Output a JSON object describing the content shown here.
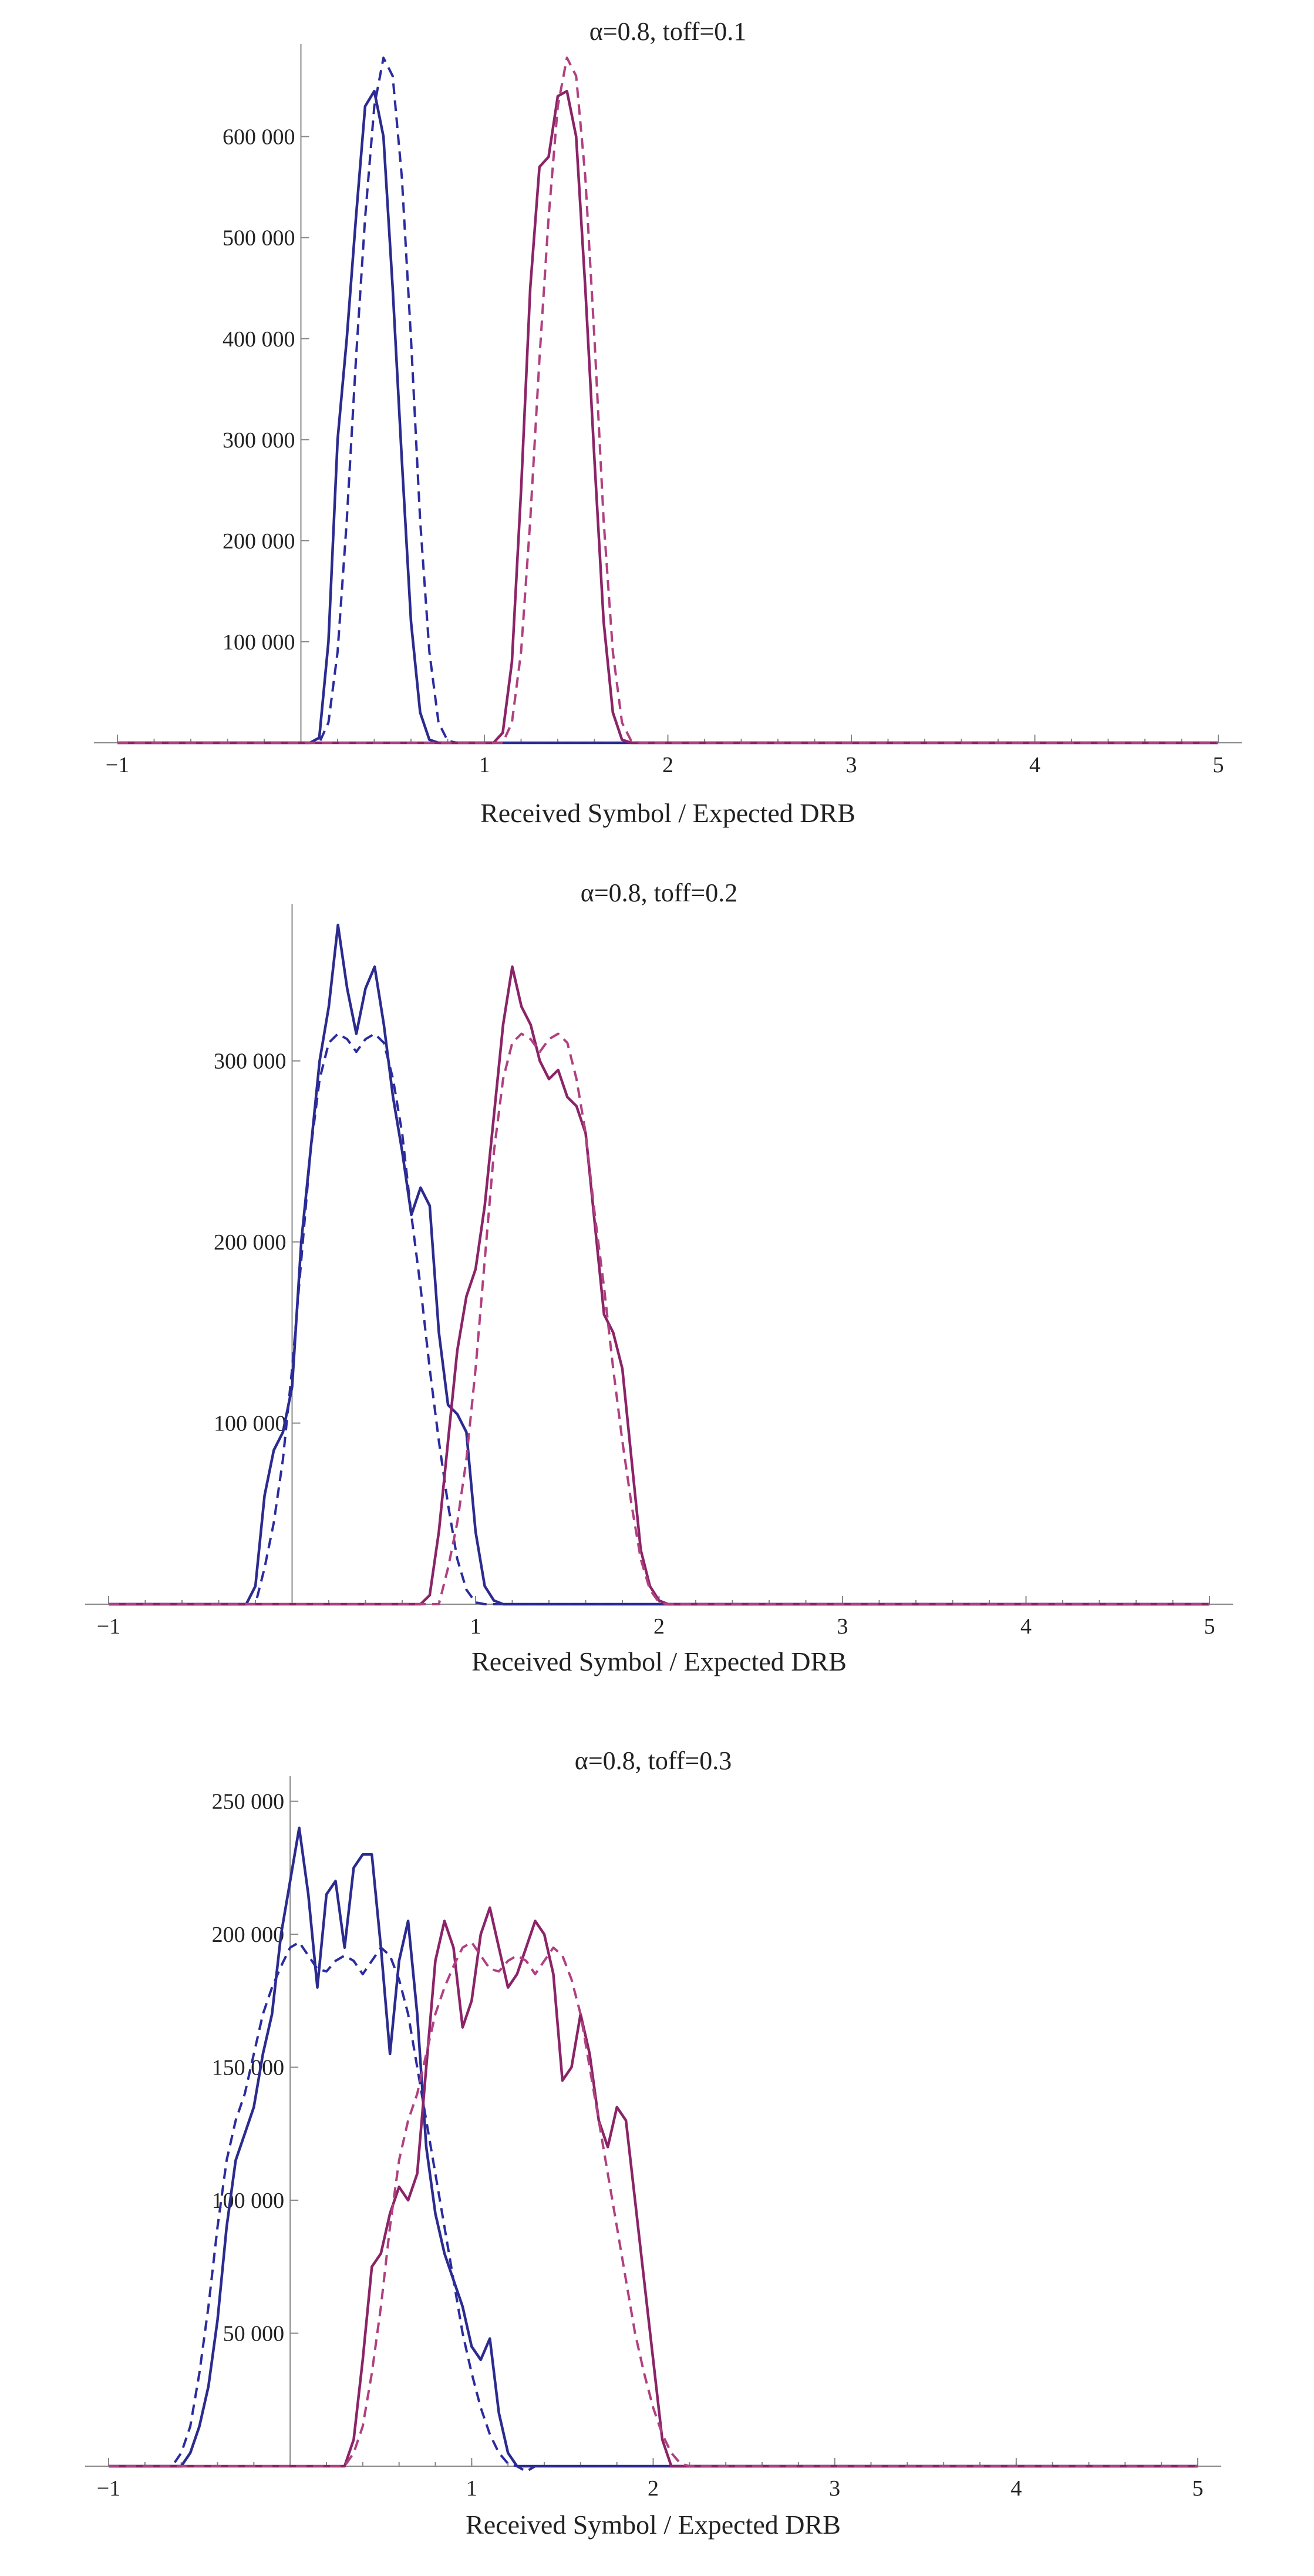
{
  "chart_data": [
    {
      "type": "line",
      "title": "α=0.8, toff=0.1",
      "xlabel": "Received Symbol / Expected DRB",
      "ylabel": "",
      "xlim": [
        -1,
        5
      ],
      "ylim": [
        0,
        680000
      ],
      "xticks": [
        -1,
        1,
        2,
        3,
        4,
        5
      ],
      "xtick_labels": [
        "−1",
        "1",
        "2",
        "3",
        "4",
        "5"
      ],
      "yticks": [
        100000,
        200000,
        300000,
        400000,
        500000,
        600000
      ],
      "ytick_labels": [
        "100 000",
        "200 000",
        "300 000",
        "400 000",
        "500 000",
        "600 000"
      ],
      "grid": false,
      "legend": "none",
      "colors": {
        "blue": "#2b2b8f",
        "purple": "#8b2467",
        "dashed": "#2b2b9f",
        "purple_dashed": "#b04080"
      },
      "series": [
        {
          "style": "solid",
          "color": "blue",
          "x": [
            -1,
            0.05,
            0.1,
            0.15,
            0.2,
            0.25,
            0.3,
            0.35,
            0.4,
            0.45,
            0.5,
            0.55,
            0.6,
            0.65,
            0.7,
            0.75,
            0.8,
            0.85,
            0.9,
            5
          ],
          "y": [
            0,
            0,
            5000,
            100000,
            300000,
            400000,
            520000,
            630000,
            645000,
            600000,
            450000,
            280000,
            120000,
            30000,
            3000,
            0,
            0,
            0,
            0,
            0
          ]
        },
        {
          "style": "dashed",
          "color": "dashed",
          "x": [
            -1,
            0.1,
            0.15,
            0.2,
            0.25,
            0.3,
            0.35,
            0.4,
            0.45,
            0.5,
            0.55,
            0.6,
            0.65,
            0.7,
            0.75,
            0.8,
            0.85,
            5
          ],
          "y": [
            0,
            0,
            20000,
            90000,
            220000,
            380000,
            520000,
            630000,
            678000,
            660000,
            560000,
            400000,
            220000,
            90000,
            20000,
            2000,
            0,
            0
          ]
        },
        {
          "style": "solid",
          "color": "purple",
          "x": [
            -1,
            1.05,
            1.1,
            1.15,
            1.2,
            1.25,
            1.3,
            1.35,
            1.4,
            1.45,
            1.5,
            1.55,
            1.6,
            1.65,
            1.7,
            1.75,
            1.8,
            1.85,
            5
          ],
          "y": [
            0,
            0,
            10000,
            80000,
            250000,
            450000,
            570000,
            580000,
            640000,
            645000,
            600000,
            450000,
            280000,
            120000,
            30000,
            3000,
            0,
            0,
            0
          ]
        },
        {
          "style": "dashed",
          "color": "purple_dashed",
          "x": [
            -1,
            1.1,
            1.15,
            1.2,
            1.25,
            1.3,
            1.35,
            1.4,
            1.45,
            1.5,
            1.55,
            1.6,
            1.65,
            1.7,
            1.75,
            1.8,
            1.85,
            5
          ],
          "y": [
            0,
            0,
            20000,
            90000,
            220000,
            380000,
            520000,
            630000,
            678000,
            660000,
            560000,
            400000,
            220000,
            90000,
            20000,
            2000,
            0,
            0
          ]
        }
      ]
    },
    {
      "type": "line",
      "title": "α=0.8, toff=0.2",
      "xlabel": "Received Symbol / Expected DRB",
      "ylabel": "",
      "xlim": [
        -1,
        5
      ],
      "ylim": [
        0,
        380000
      ],
      "xticks": [
        -1,
        1,
        2,
        3,
        4,
        5
      ],
      "xtick_labels": [
        "−1",
        "1",
        "2",
        "3",
        "4",
        "5"
      ],
      "yticks": [
        100000,
        200000,
        300000
      ],
      "ytick_labels": [
        "100 000",
        "200 000",
        "300 000"
      ],
      "grid": false,
      "legend": "none",
      "colors": {
        "blue": "#2b2b8f",
        "purple": "#8b2467",
        "dashed": "#2b2b9f",
        "purple_dashed": "#b04080"
      },
      "series": [
        {
          "style": "solid",
          "color": "blue",
          "x": [
            -1,
            -0.25,
            -0.2,
            -0.15,
            -0.1,
            -0.05,
            0,
            0.05,
            0.1,
            0.15,
            0.2,
            0.25,
            0.3,
            0.35,
            0.4,
            0.45,
            0.5,
            0.55,
            0.6,
            0.65,
            0.7,
            0.75,
            0.8,
            0.85,
            0.9,
            0.95,
            1.0,
            1.05,
            1.1,
            1.15,
            5
          ],
          "y": [
            0,
            0,
            10000,
            60000,
            85000,
            95000,
            120000,
            200000,
            250000,
            300000,
            330000,
            375000,
            340000,
            315000,
            340000,
            352000,
            320000,
            280000,
            250000,
            215000,
            230000,
            220000,
            150000,
            110000,
            105000,
            95000,
            40000,
            10000,
            2000,
            0,
            0
          ]
        },
        {
          "style": "dashed",
          "color": "dashed",
          "x": [
            -1,
            -0.2,
            -0.15,
            -0.1,
            -0.05,
            0,
            0.05,
            0.1,
            0.15,
            0.2,
            0.25,
            0.3,
            0.35,
            0.4,
            0.45,
            0.5,
            0.55,
            0.6,
            0.65,
            0.7,
            0.75,
            0.8,
            0.85,
            0.9,
            0.95,
            1.0,
            1.05,
            1.1,
            5
          ],
          "y": [
            0,
            0,
            20000,
            45000,
            80000,
            130000,
            190000,
            250000,
            290000,
            310000,
            315000,
            312000,
            305000,
            312000,
            315000,
            310000,
            290000,
            260000,
            215000,
            175000,
            130000,
            90000,
            55000,
            25000,
            8000,
            1000,
            0,
            0,
            0
          ]
        },
        {
          "style": "solid",
          "color": "purple",
          "x": [
            -1,
            0.7,
            0.75,
            0.8,
            0.85,
            0.9,
            0.95,
            1.0,
            1.05,
            1.1,
            1.15,
            1.2,
            1.25,
            1.3,
            1.35,
            1.4,
            1.45,
            1.5,
            1.55,
            1.6,
            1.65,
            1.7,
            1.75,
            1.8,
            1.85,
            1.9,
            1.95,
            2.0,
            2.05,
            2.1,
            5
          ],
          "y": [
            0,
            0,
            5000,
            40000,
            90000,
            140000,
            170000,
            185000,
            220000,
            270000,
            320000,
            352000,
            330000,
            320000,
            300000,
            290000,
            295000,
            280000,
            275000,
            260000,
            210000,
            160000,
            150000,
            130000,
            80000,
            30000,
            10000,
            2000,
            0,
            0,
            0
          ]
        },
        {
          "style": "dashed",
          "color": "purple_dashed",
          "x": [
            -1,
            0.8,
            0.85,
            0.9,
            0.95,
            1.0,
            1.05,
            1.1,
            1.15,
            1.2,
            1.25,
            1.3,
            1.35,
            1.4,
            1.45,
            1.5,
            1.55,
            1.6,
            1.65,
            1.7,
            1.75,
            1.8,
            1.85,
            1.9,
            1.95,
            2.0,
            2.05,
            2.1,
            5
          ],
          "y": [
            0,
            0,
            20000,
            45000,
            80000,
            130000,
            190000,
            250000,
            290000,
            310000,
            315000,
            312000,
            305000,
            312000,
            315000,
            310000,
            290000,
            260000,
            215000,
            175000,
            130000,
            90000,
            55000,
            25000,
            8000,
            1000,
            0,
            0,
            0
          ]
        }
      ]
    },
    {
      "type": "line",
      "title": "α=0.8, toff=0.3",
      "xlabel": "Received Symbol / Expected DRB",
      "ylabel": "",
      "xlim": [
        -1,
        5
      ],
      "ylim": [
        0,
        255000
      ],
      "xticks": [
        -1,
        1,
        2,
        3,
        4,
        5
      ],
      "xtick_labels": [
        "−1",
        "1",
        "2",
        "3",
        "4",
        "5"
      ],
      "yticks": [
        50000,
        100000,
        150000,
        200000,
        250000
      ],
      "ytick_labels": [
        "50 000",
        "100 000",
        "150 000",
        "200 000",
        "250 000"
      ],
      "grid": false,
      "legend": "none",
      "colors": {
        "blue": "#2b2b8f",
        "purple": "#8b2467",
        "dashed": "#2b2b9f",
        "purple_dashed": "#b04080"
      },
      "series": [
        {
          "style": "solid",
          "color": "blue",
          "x": [
            -1,
            -0.6,
            -0.55,
            -0.5,
            -0.45,
            -0.4,
            -0.35,
            -0.3,
            -0.25,
            -0.2,
            -0.15,
            -0.1,
            -0.05,
            0,
            0.05,
            0.1,
            0.15,
            0.2,
            0.25,
            0.3,
            0.35,
            0.4,
            0.45,
            0.5,
            0.55,
            0.6,
            0.65,
            0.7,
            0.75,
            0.8,
            0.85,
            0.9,
            0.95,
            1.0,
            1.05,
            1.1,
            1.15,
            1.2,
            1.25,
            1.3,
            1.35,
            1.4,
            5
          ],
          "y": [
            0,
            0,
            5000,
            15000,
            30000,
            55000,
            90000,
            115000,
            125000,
            135000,
            155000,
            170000,
            200000,
            220000,
            240000,
            215000,
            180000,
            215000,
            220000,
            195000,
            225000,
            230000,
            230000,
            195000,
            155000,
            190000,
            205000,
            170000,
            120000,
            95000,
            80000,
            70000,
            60000,
            45000,
            40000,
            48000,
            20000,
            5000,
            0,
            0,
            0,
            0,
            0
          ]
        },
        {
          "style": "dashed",
          "color": "dashed",
          "x": [
            -1,
            -0.65,
            -0.6,
            -0.55,
            -0.5,
            -0.45,
            -0.4,
            -0.35,
            -0.3,
            -0.25,
            -0.2,
            -0.15,
            -0.1,
            -0.05,
            0,
            0.05,
            0.1,
            0.15,
            0.2,
            0.25,
            0.3,
            0.35,
            0.4,
            0.45,
            0.5,
            0.55,
            0.6,
            0.65,
            0.7,
            0.75,
            0.8,
            0.85,
            0.9,
            0.95,
            1.0,
            1.05,
            1.1,
            1.15,
            1.2,
            1.25,
            1.3,
            1.35,
            1.4,
            1.45,
            5
          ],
          "y": [
            0,
            0,
            5000,
            15000,
            35000,
            60000,
            90000,
            115000,
            130000,
            140000,
            155000,
            170000,
            180000,
            188000,
            195000,
            197000,
            192000,
            187000,
            186000,
            190000,
            192000,
            190000,
            185000,
            190000,
            195000,
            192000,
            183000,
            170000,
            150000,
            130000,
            110000,
            90000,
            70000,
            50000,
            35000,
            22000,
            12000,
            5000,
            1000,
            0,
            -2000,
            0,
            0,
            0,
            0
          ]
        },
        {
          "style": "solid",
          "color": "purple",
          "x": [
            -1,
            0.3,
            0.35,
            0.4,
            0.45,
            0.5,
            0.55,
            0.6,
            0.65,
            0.7,
            0.75,
            0.8,
            0.85,
            0.9,
            0.95,
            1.0,
            1.05,
            1.1,
            1.15,
            1.2,
            1.25,
            1.3,
            1.35,
            1.4,
            1.45,
            1.5,
            1.55,
            1.6,
            1.65,
            1.7,
            1.75,
            1.8,
            1.85,
            1.9,
            1.95,
            2.0,
            2.05,
            2.1,
            2.15,
            5
          ],
          "y": [
            0,
            0,
            10000,
            40000,
            75000,
            80000,
            95000,
            105000,
            100000,
            110000,
            150000,
            190000,
            205000,
            195000,
            165000,
            175000,
            200000,
            210000,
            195000,
            180000,
            185000,
            195000,
            205000,
            200000,
            185000,
            145000,
            150000,
            170000,
            155000,
            130000,
            120000,
            135000,
            130000,
            100000,
            70000,
            40000,
            10000,
            0,
            0,
            0
          ]
        },
        {
          "style": "dashed",
          "color": "purple_dashed",
          "x": [
            -1,
            0.3,
            0.35,
            0.4,
            0.45,
            0.5,
            0.55,
            0.6,
            0.65,
            0.7,
            0.75,
            0.8,
            0.85,
            0.9,
            0.95,
            1.0,
            1.05,
            1.1,
            1.15,
            1.2,
            1.25,
            1.3,
            1.35,
            1.4,
            1.45,
            1.5,
            1.55,
            1.6,
            1.65,
            1.7,
            1.75,
            1.8,
            1.85,
            1.9,
            1.95,
            2.0,
            2.05,
            2.1,
            2.15,
            2.2,
            5
          ],
          "y": [
            0,
            0,
            5000,
            15000,
            35000,
            60000,
            90000,
            115000,
            130000,
            140000,
            155000,
            170000,
            180000,
            188000,
            195000,
            197000,
            192000,
            187000,
            186000,
            190000,
            192000,
            190000,
            185000,
            190000,
            195000,
            192000,
            183000,
            170000,
            150000,
            130000,
            110000,
            90000,
            70000,
            50000,
            35000,
            22000,
            12000,
            5000,
            1000,
            0,
            0
          ]
        }
      ]
    }
  ]
}
